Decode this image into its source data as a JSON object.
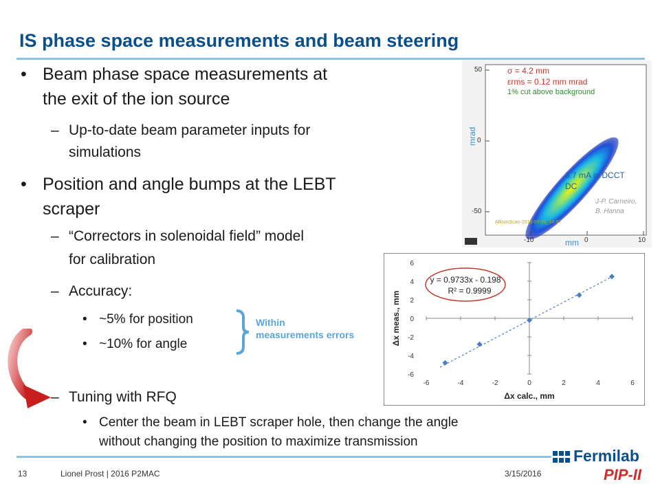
{
  "title": "IS phase space measurements and beam steering",
  "bullets": {
    "b1_line1": "Beam phase space measurements at",
    "b1_line2": "the exit of the ion source",
    "b1_sub_line1": "Up-to-date beam parameter inputs for",
    "b1_sub_line2": "simulations",
    "b2_line1": "Position and angle bumps at the LEBT",
    "b2_line2": "scraper",
    "b2_sub1_line1": "“Correctors in solenoidal field” model",
    "b2_sub1_line2": "for calibration",
    "b2_sub2": "Accuracy:",
    "b2_sub2_item1": "~5% for position",
    "b2_sub2_item2": "~10% for angle",
    "b2_sub3": "Tuning with RFQ",
    "b2_sub3_item1_line1": "Center the beam in LEBT scraper hole, then change the angle",
    "b2_sub3_item1_line2": "without changing the position to maximize transmission",
    "bullet_char": "•",
    "dash_char": "–"
  },
  "within_note": {
    "line1": "Within",
    "line2": "measurements errors"
  },
  "phase_space": {
    "ylabel": "mrad",
    "xlabel": "mm",
    "legend": {
      "sigma": "σ     = 4.2 mm",
      "emittance": "εrms = 0.12  mm mrad",
      "cut": "1% cut above background"
    },
    "current": {
      "line1": "3.7 mA in DCCT",
      "line2": "DC"
    },
    "credit": {
      "line1": "J-P. Carneiro,",
      "line2": "B. Hanna"
    },
    "scan_id": "AllisonScan-2015-07-15_14-57",
    "yticks": [
      "50",
      "0",
      "-50"
    ],
    "xticks": [
      "-10",
      "0",
      "10"
    ],
    "colors": {
      "mrad": "#3a8fd0",
      "sigma": "#c0392b",
      "cut": "#2e8b2e",
      "current": "#1f5fa0"
    }
  },
  "chart_data": {
    "type": "scatter",
    "xlabel": "Δx calc., mm",
    "ylabel": "Δx meas., mm",
    "xlim": [
      -6,
      6
    ],
    "ylim": [
      -6,
      6
    ],
    "xticks": [
      "-6",
      "-4",
      "-2",
      "0",
      "2",
      "4",
      "6"
    ],
    "yticks": [
      "-6",
      "-4",
      "-2",
      "0",
      "2",
      "4",
      "6"
    ],
    "points": [
      {
        "x": -4.9,
        "y": -4.8
      },
      {
        "x": -2.9,
        "y": -2.8
      },
      {
        "x": 0.0,
        "y": -0.2
      },
      {
        "x": 2.9,
        "y": 2.5
      },
      {
        "x": 4.8,
        "y": 4.5
      }
    ],
    "trendline": {
      "slope": 0.9733,
      "intercept": -0.198
    },
    "equation": "y = 0.9733x - 0.198",
    "r2": "R² = 0.9999",
    "grid": false,
    "marker_color": "#4a7fc1",
    "ellipse_color": "#c0392b"
  },
  "footer": {
    "page": "13",
    "author": "Lionel Prost | 2016 P2MAC",
    "date": "3/15/2016"
  },
  "logo": {
    "name": "Fermilab",
    "project": "PIP-II"
  }
}
